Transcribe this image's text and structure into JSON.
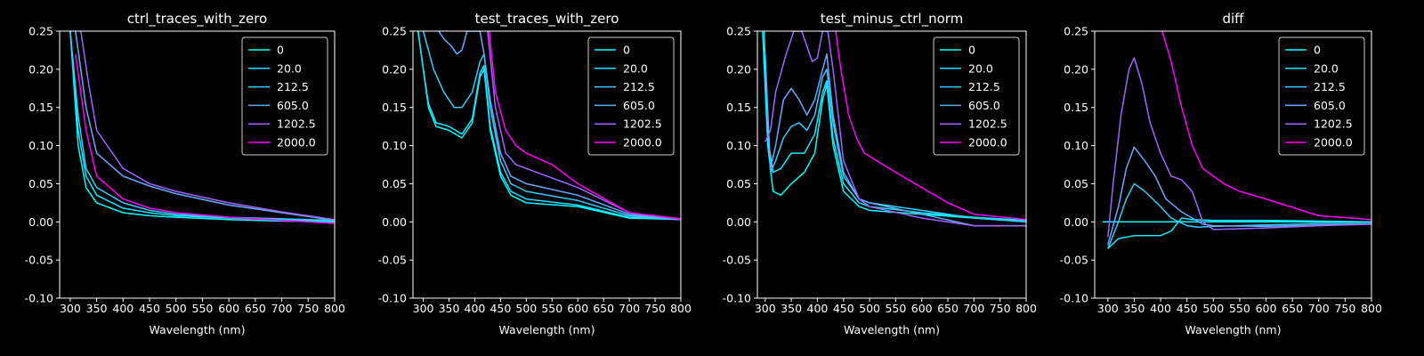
{
  "figure": {
    "background": "#000000",
    "foreground": "#ffffff"
  },
  "legend_labels": [
    "0",
    "20.0",
    "212.5",
    "605.0",
    "1202.5",
    "2000.0"
  ],
  "series_colors": [
    "#00ffff",
    "#1ae5ff",
    "#33ccff",
    "#66aaff",
    "#9f66ff",
    "#ff00ff"
  ],
  "chart_data": [
    {
      "type": "line",
      "title": "ctrl_traces_with_zero",
      "xlabel": "Wavelength (nm)",
      "ylabel": "",
      "xlim": [
        280,
        800
      ],
      "ylim": [
        -0.1,
        0.25
      ],
      "xticks": [
        300,
        350,
        400,
        450,
        500,
        550,
        600,
        650,
        700,
        750,
        800
      ],
      "yticks": [
        -0.1,
        -0.05,
        0.0,
        0.05,
        0.1,
        0.15,
        0.2,
        0.25
      ],
      "grid": false,
      "legend": "top-right",
      "series": [
        {
          "name": "0",
          "x": [
            300,
            315,
            330,
            350,
            400,
            450,
            500,
            600,
            700,
            800
          ],
          "y": [
            0.25,
            0.1,
            0.045,
            0.025,
            0.012,
            0.008,
            0.006,
            0.003,
            0.001,
            0.0
          ]
        },
        {
          "name": "20.0",
          "x": [
            300,
            315,
            330,
            350,
            400,
            450,
            500,
            600,
            700,
            800
          ],
          "y": [
            0.25,
            0.12,
            0.06,
            0.035,
            0.018,
            0.012,
            0.008,
            0.005,
            0.003,
            0.001
          ]
        },
        {
          "name": "212.5",
          "x": [
            300,
            315,
            330,
            350,
            400,
            450,
            500,
            600,
            700,
            800
          ],
          "y": [
            0.25,
            0.14,
            0.07,
            0.045,
            0.025,
            0.015,
            0.01,
            0.006,
            0.004,
            0.002
          ]
        },
        {
          "name": "605.0",
          "x": [
            310,
            330,
            350,
            400,
            450,
            500,
            600,
            700,
            800
          ],
          "y": [
            0.25,
            0.15,
            0.09,
            0.06,
            0.047,
            0.037,
            0.022,
            0.012,
            0.002
          ]
        },
        {
          "name": "1202.5",
          "x": [
            320,
            335,
            350,
            400,
            450,
            500,
            600,
            700,
            800
          ],
          "y": [
            0.25,
            0.18,
            0.12,
            0.07,
            0.05,
            0.04,
            0.025,
            0.013,
            0.003
          ]
        },
        {
          "name": "2000.0",
          "x": [
            310,
            330,
            350,
            400,
            450,
            500,
            600,
            700,
            800
          ],
          "y": [
            0.22,
            0.12,
            0.06,
            0.03,
            0.018,
            0.012,
            0.006,
            0.002,
            -0.002
          ]
        }
      ]
    },
    {
      "type": "line",
      "title": "test_traces_with_zero",
      "xlabel": "Wavelength (nm)",
      "ylabel": "",
      "xlim": [
        280,
        800
      ],
      "ylim": [
        -0.1,
        0.25
      ],
      "xticks": [
        300,
        350,
        400,
        450,
        500,
        550,
        600,
        650,
        700,
        750,
        800
      ],
      "yticks": [
        -0.1,
        -0.05,
        0.0,
        0.05,
        0.1,
        0.15,
        0.2,
        0.25
      ],
      "grid": false,
      "legend": "top-right",
      "series": [
        {
          "name": "0",
          "x": [
            290,
            300,
            310,
            325,
            350,
            375,
            395,
            410,
            418,
            430,
            450,
            470,
            500,
            600,
            700,
            800
          ],
          "y": [
            0.25,
            0.2,
            0.15,
            0.125,
            0.12,
            0.11,
            0.13,
            0.19,
            0.2,
            0.12,
            0.06,
            0.035,
            0.025,
            0.02,
            0.005,
            0.003
          ]
        },
        {
          "name": "20.0",
          "x": [
            290,
            300,
            310,
            325,
            350,
            375,
            395,
            410,
            418,
            430,
            450,
            470,
            500,
            600,
            700,
            800
          ],
          "y": [
            0.25,
            0.2,
            0.155,
            0.13,
            0.125,
            0.115,
            0.135,
            0.195,
            0.205,
            0.125,
            0.065,
            0.04,
            0.03,
            0.022,
            0.006,
            0.003
          ]
        },
        {
          "name": "212.5",
          "x": [
            300,
            320,
            340,
            360,
            375,
            395,
            410,
            418,
            430,
            450,
            470,
            500,
            600,
            700,
            800
          ],
          "y": [
            0.25,
            0.2,
            0.17,
            0.15,
            0.15,
            0.17,
            0.21,
            0.22,
            0.15,
            0.08,
            0.05,
            0.04,
            0.028,
            0.008,
            0.003
          ]
        },
        {
          "name": "605.0",
          "x": [
            330,
            340,
            355,
            365,
            375,
            385,
            400,
            410,
            418,
            430,
            450,
            470,
            500,
            600,
            700,
            800
          ],
          "y": [
            0.25,
            0.24,
            0.23,
            0.22,
            0.225,
            0.25,
            0.25,
            0.25,
            0.22,
            0.16,
            0.09,
            0.06,
            0.05,
            0.035,
            0.01,
            0.003
          ]
        },
        {
          "name": "1202.5",
          "x": [
            425,
            440,
            460,
            480,
            500,
            600,
            700,
            800
          ],
          "y": [
            0.25,
            0.15,
            0.09,
            0.075,
            0.07,
            0.045,
            0.012,
            0.003
          ]
        },
        {
          "name": "2000.0",
          "x": [
            428,
            440,
            460,
            480,
            500,
            550,
            600,
            700,
            800
          ],
          "y": [
            0.25,
            0.17,
            0.12,
            0.1,
            0.09,
            0.075,
            0.05,
            0.012,
            0.004
          ]
        }
      ]
    },
    {
      "type": "line",
      "title": "test_minus_ctrl_norm",
      "xlabel": "Wavelength (nm)",
      "ylabel": "",
      "xlim": [
        285,
        800
      ],
      "ylim": [
        -0.1,
        0.25
      ],
      "xticks": [
        300,
        350,
        400,
        450,
        500,
        550,
        600,
        650,
        700,
        750,
        800
      ],
      "yticks": [
        -0.1,
        -0.05,
        0.0,
        0.05,
        0.1,
        0.15,
        0.2,
        0.25
      ],
      "grid": false,
      "legend": "top-right",
      "series": [
        {
          "name": "0",
          "x": [
            295,
            305,
            315,
            330,
            350,
            375,
            395,
            410,
            418,
            430,
            450,
            480,
            500,
            600,
            700,
            800
          ],
          "y": [
            0.25,
            0.1,
            0.04,
            0.035,
            0.05,
            0.065,
            0.09,
            0.16,
            0.18,
            0.1,
            0.04,
            0.02,
            0.015,
            0.01,
            0.005,
            0.0
          ]
        },
        {
          "name": "20.0",
          "x": [
            298,
            305,
            315,
            330,
            350,
            375,
            395,
            410,
            418,
            430,
            450,
            480,
            500,
            600,
            700,
            800
          ],
          "y": [
            0.25,
            0.11,
            0.065,
            0.07,
            0.09,
            0.09,
            0.115,
            0.17,
            0.185,
            0.11,
            0.05,
            0.025,
            0.02,
            0.012,
            0.006,
            0.002
          ]
        },
        {
          "name": "212.5",
          "x": [
            300,
            310,
            320,
            335,
            350,
            365,
            380,
            395,
            410,
            418,
            430,
            450,
            480,
            500,
            600,
            700,
            800
          ],
          "y": [
            0.22,
            0.065,
            0.08,
            0.11,
            0.125,
            0.13,
            0.12,
            0.14,
            0.19,
            0.2,
            0.13,
            0.06,
            0.03,
            0.025,
            0.015,
            0.005,
            0.0
          ]
        },
        {
          "name": "605.0",
          "x": [
            300,
            310,
            320,
            335,
            350,
            365,
            380,
            395,
            410,
            418,
            430,
            450,
            480,
            500,
            600,
            700,
            800
          ],
          "y": [
            0.2,
            0.07,
            0.1,
            0.16,
            0.175,
            0.16,
            0.14,
            0.16,
            0.2,
            0.22,
            0.14,
            0.065,
            0.03,
            0.025,
            0.01,
            -0.005,
            -0.005
          ]
        },
        {
          "name": "1202.5",
          "x": [
            300,
            310,
            320,
            340,
            355,
            370,
            380,
            390,
            400,
            410,
            420,
            430,
            450,
            480,
            500,
            600,
            700,
            800
          ],
          "y": [
            0.105,
            0.12,
            0.17,
            0.22,
            0.25,
            0.25,
            0.23,
            0.21,
            0.215,
            0.25,
            0.25,
            0.2,
            0.08,
            0.03,
            0.02,
            0.005,
            -0.005,
            -0.005
          ]
        },
        {
          "name": "2000.0",
          "x": [
            435,
            445,
            460,
            475,
            490,
            550,
            600,
            650,
            700,
            800
          ],
          "y": [
            0.25,
            0.2,
            0.14,
            0.11,
            0.09,
            0.065,
            0.045,
            0.025,
            0.01,
            0.003
          ]
        }
      ]
    },
    {
      "type": "line",
      "title": "diff",
      "xlabel": "Wavelength (nm)",
      "ylabel": "",
      "xlim": [
        275,
        800
      ],
      "ylim": [
        -0.1,
        0.25
      ],
      "xticks": [
        300,
        350,
        400,
        450,
        500,
        550,
        600,
        650,
        700,
        750,
        800
      ],
      "yticks": [
        -0.1,
        -0.05,
        0.0,
        0.05,
        0.1,
        0.15,
        0.2,
        0.25
      ],
      "grid": false,
      "legend": "top-right",
      "series": [
        {
          "name": "0",
          "x": [
            290,
            800
          ],
          "y": [
            0.0,
            0.0
          ]
        },
        {
          "name": "20.0",
          "x": [
            300,
            320,
            350,
            400,
            420,
            440,
            460,
            500,
            600,
            700,
            800
          ],
          "y": [
            -0.035,
            -0.022,
            -0.018,
            -0.018,
            -0.012,
            0.005,
            0.003,
            0.002,
            0.002,
            0.001,
            0.0
          ]
        },
        {
          "name": "212.5",
          "x": [
            300,
            320,
            335,
            350,
            370,
            400,
            420,
            450,
            470,
            500,
            600,
            700,
            800
          ],
          "y": [
            -0.035,
            0.0,
            0.03,
            0.05,
            0.04,
            0.02,
            0.005,
            -0.005,
            -0.007,
            -0.006,
            -0.004,
            -0.002,
            -0.002
          ]
        },
        {
          "name": "605.0",
          "x": [
            300,
            320,
            335,
            350,
            370,
            390,
            410,
            440,
            460,
            480,
            500,
            600,
            700,
            800
          ],
          "y": [
            -0.03,
            0.02,
            0.07,
            0.098,
            0.08,
            0.06,
            0.03,
            0.013,
            0.005,
            -0.003,
            -0.005,
            -0.006,
            -0.004,
            -0.003
          ]
        },
        {
          "name": "1202.5",
          "x": [
            300,
            310,
            325,
            340,
            350,
            365,
            380,
            400,
            420,
            440,
            460,
            480,
            500,
            600,
            700,
            800
          ],
          "y": [
            -0.02,
            0.05,
            0.14,
            0.2,
            0.215,
            0.18,
            0.13,
            0.09,
            0.06,
            0.055,
            0.04,
            0.0,
            -0.01,
            -0.008,
            -0.005,
            -0.003
          ]
        },
        {
          "name": "2000.0",
          "x": [
            403,
            420,
            440,
            460,
            480,
            500,
            520,
            550,
            600,
            700,
            800
          ],
          "y": [
            0.25,
            0.21,
            0.15,
            0.1,
            0.07,
            0.06,
            0.05,
            0.04,
            0.03,
            0.008,
            0.003
          ]
        }
      ]
    }
  ]
}
